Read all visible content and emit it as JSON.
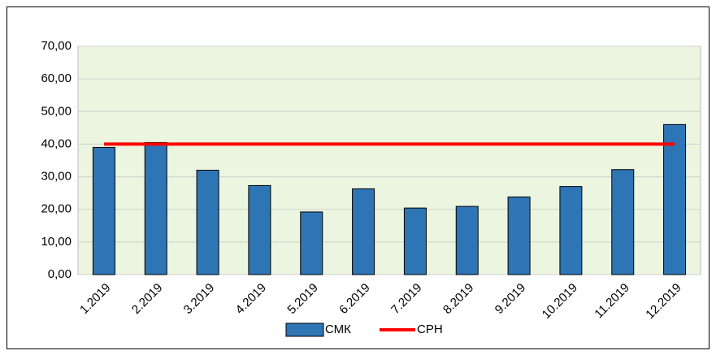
{
  "chart_data": {
    "type": "bar",
    "categories": [
      "1.2019",
      "2.2019",
      "3.2019",
      "4.2019",
      "5.2019",
      "6.2019",
      "7.2019",
      "8.2019",
      "9.2019",
      "10.2019",
      "11.2019",
      "12.2019"
    ],
    "series": [
      {
        "name": "СМК",
        "type": "bar",
        "color": "#2e75b6",
        "values": [
          39.0,
          40.5,
          32.0,
          27.3,
          19.2,
          26.3,
          20.4,
          20.9,
          23.8,
          27.0,
          32.2,
          46.0
        ]
      },
      {
        "name": "СРН",
        "type": "line",
        "color": "#ff0000",
        "values": [
          40,
          40,
          40,
          40,
          40,
          40,
          40,
          40,
          40,
          40,
          40,
          40
        ]
      }
    ],
    "ylim": [
      0,
      70
    ],
    "yticks": [
      {
        "value": 0,
        "label": "0,00"
      },
      {
        "value": 10,
        "label": "10,00"
      },
      {
        "value": 20,
        "label": "20,00"
      },
      {
        "value": 30,
        "label": "30,00"
      },
      {
        "value": 40,
        "label": "40,00"
      },
      {
        "value": 50,
        "label": "50,00"
      },
      {
        "value": 60,
        "label": "60,00"
      },
      {
        "value": 70,
        "label": "70,00"
      }
    ],
    "grid": true,
    "legend": "bottom"
  }
}
